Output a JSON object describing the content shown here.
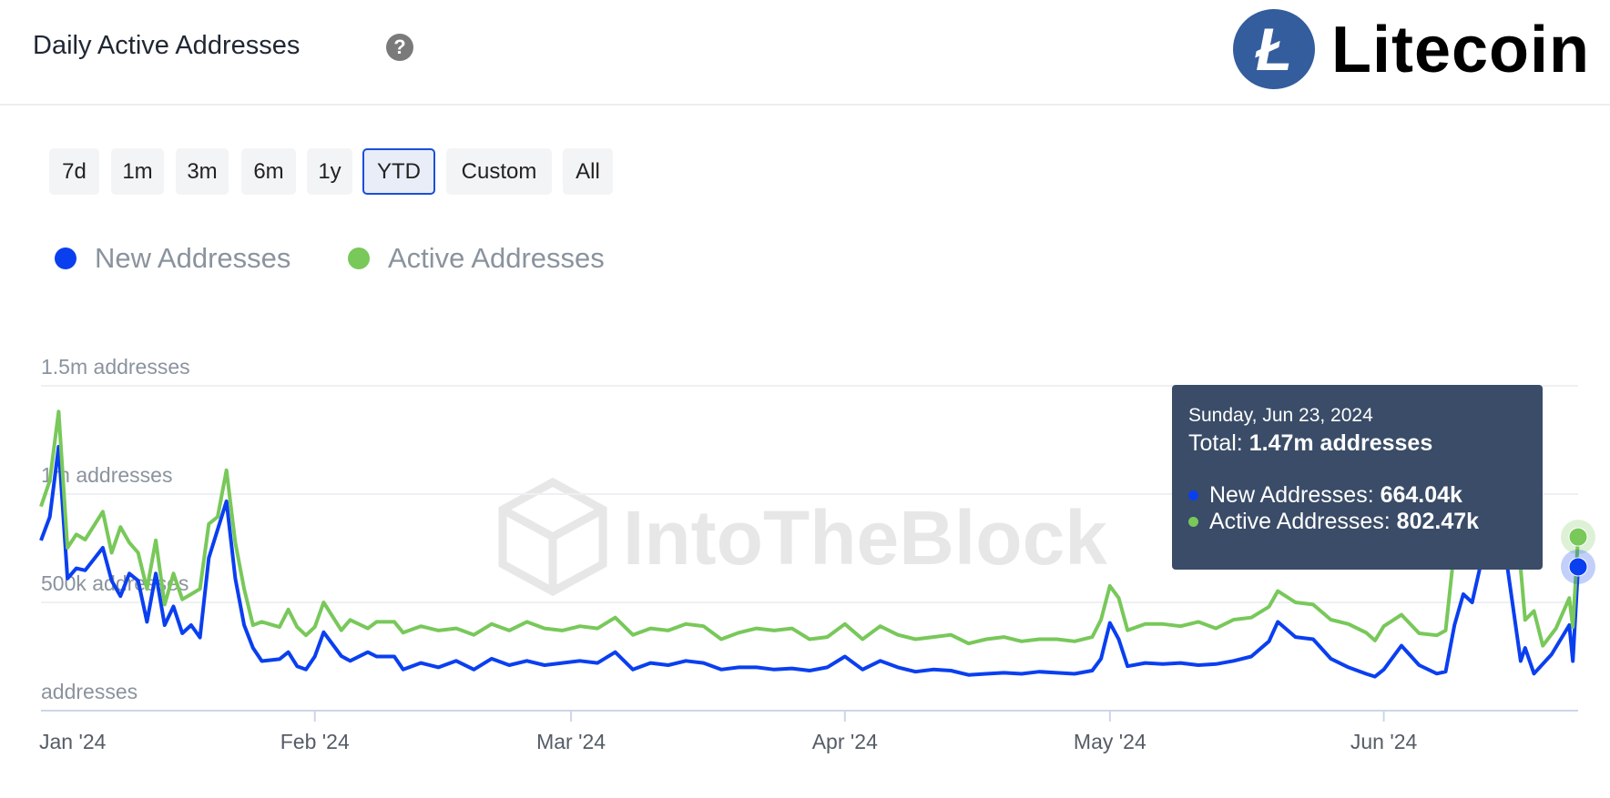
{
  "header": {
    "title": "Daily Active Addresses",
    "help_icon": "?",
    "brand": "Litecoin",
    "brand_logo_letter": "Ł"
  },
  "ranges": [
    {
      "label": "7d"
    },
    {
      "label": "1m"
    },
    {
      "label": "3m"
    },
    {
      "label": "6m"
    },
    {
      "label": "1y"
    },
    {
      "label": "YTD",
      "active": true
    },
    {
      "label": "Custom"
    },
    {
      "label": "All"
    }
  ],
  "legend": [
    {
      "label": "New Addresses",
      "color": "#0a3ff0"
    },
    {
      "label": "Active Addresses",
      "color": "#78c85a"
    }
  ],
  "watermark": "IntoTheBlock",
  "tooltip": {
    "date": "Sunday, Jun 23, 2024",
    "total_label": "Total:",
    "total_value": "1.47m addresses",
    "rows": [
      {
        "label": "New Addresses:",
        "value": "664.04k",
        "color": "#0a3ff0"
      },
      {
        "label": "Active Addresses:",
        "value": "802.47k",
        "color": "#78c85a"
      }
    ]
  },
  "chart_data": {
    "type": "line",
    "title": "Daily Active Addresses",
    "x_unit": "days since Jan 1 2024",
    "xlim": [
      0,
      174
    ],
    "ylim": [
      0,
      1500
    ],
    "y_unit": "thousands of addresses",
    "yticks": [
      {
        "value": 0,
        "label": "addresses"
      },
      {
        "value": 500,
        "label": "500k addresses"
      },
      {
        "value": 1000,
        "label": "1m addresses"
      },
      {
        "value": 1500,
        "label": "1.5m addresses"
      }
    ],
    "xticks": [
      {
        "value": 0,
        "label": "Jan '24"
      },
      {
        "value": 31,
        "label": "Feb '24"
      },
      {
        "value": 60,
        "label": "Mar '24"
      },
      {
        "value": 91,
        "label": "Apr '24"
      },
      {
        "value": 121,
        "label": "May '24"
      },
      {
        "value": 152,
        "label": "Jun '24"
      }
    ],
    "grid": true,
    "legend_position": "top-left",
    "series": [
      {
        "name": "Active Addresses",
        "color": "#78c85a",
        "points": [
          [
            0,
            943
          ],
          [
            1,
            1062
          ],
          [
            2,
            1381
          ],
          [
            3,
            752
          ],
          [
            4,
            814
          ],
          [
            5,
            790
          ],
          [
            7,
            919
          ],
          [
            8,
            729
          ],
          [
            9,
            848
          ],
          [
            10,
            776
          ],
          [
            11,
            729
          ],
          [
            12,
            562
          ],
          [
            13,
            786
          ],
          [
            14,
            490
          ],
          [
            15,
            633
          ],
          [
            16,
            514
          ],
          [
            17,
            538
          ],
          [
            18,
            562
          ],
          [
            19,
            862
          ],
          [
            20,
            895
          ],
          [
            21,
            1110
          ],
          [
            22,
            776
          ],
          [
            23,
            562
          ],
          [
            24,
            395
          ],
          [
            25,
            410
          ],
          [
            27,
            386
          ],
          [
            28,
            467
          ],
          [
            29,
            386
          ],
          [
            30,
            348
          ],
          [
            31,
            386
          ],
          [
            32,
            500
          ],
          [
            34,
            371
          ],
          [
            35,
            419
          ],
          [
            37,
            380
          ],
          [
            38,
            410
          ],
          [
            40,
            410
          ],
          [
            41,
            360
          ],
          [
            43,
            390
          ],
          [
            45,
            370
          ],
          [
            47,
            380
          ],
          [
            49,
            350
          ],
          [
            51,
            400
          ],
          [
            53,
            370
          ],
          [
            55,
            410
          ],
          [
            57,
            380
          ],
          [
            59,
            370
          ],
          [
            61,
            390
          ],
          [
            63,
            380
          ],
          [
            65,
            430
          ],
          [
            67,
            350
          ],
          [
            69,
            380
          ],
          [
            71,
            370
          ],
          [
            73,
            400
          ],
          [
            75,
            390
          ],
          [
            77,
            330
          ],
          [
            79,
            360
          ],
          [
            81,
            380
          ],
          [
            83,
            370
          ],
          [
            85,
            380
          ],
          [
            87,
            330
          ],
          [
            89,
            340
          ],
          [
            91,
            400
          ],
          [
            93,
            330
          ],
          [
            95,
            390
          ],
          [
            97,
            350
          ],
          [
            99,
            330
          ],
          [
            101,
            340
          ],
          [
            103,
            350
          ],
          [
            105,
            310
          ],
          [
            107,
            330
          ],
          [
            109,
            340
          ],
          [
            111,
            320
          ],
          [
            113,
            330
          ],
          [
            115,
            330
          ],
          [
            117,
            320
          ],
          [
            119,
            340
          ],
          [
            120,
            420
          ],
          [
            121,
            576
          ],
          [
            122,
            520
          ],
          [
            123,
            371
          ],
          [
            125,
            400
          ],
          [
            127,
            400
          ],
          [
            129,
            390
          ],
          [
            131,
            410
          ],
          [
            133,
            380
          ],
          [
            135,
            420
          ],
          [
            137,
            430
          ],
          [
            139,
            480
          ],
          [
            140,
            552
          ],
          [
            142,
            500
          ],
          [
            144,
            490
          ],
          [
            146,
            420
          ],
          [
            148,
            400
          ],
          [
            150,
            360
          ],
          [
            151,
            324
          ],
          [
            152,
            390
          ],
          [
            154,
            443
          ],
          [
            156,
            357
          ],
          [
            158,
            348
          ],
          [
            159,
            370
          ],
          [
            160,
            750
          ],
          [
            162,
            900
          ],
          [
            164,
            920
          ],
          [
            166,
            900
          ],
          [
            167.5,
            657
          ],
          [
            168,
            419
          ],
          [
            169,
            460
          ],
          [
            170,
            300
          ],
          [
            171.5,
            380
          ],
          [
            173,
            520
          ],
          [
            173.4,
            386
          ],
          [
            174,
            802
          ]
        ]
      },
      {
        "name": "New Addresses",
        "color": "#0a3ff0",
        "points": [
          [
            0,
            786
          ],
          [
            1,
            895
          ],
          [
            2,
            1219
          ],
          [
            3,
            610
          ],
          [
            4,
            657
          ],
          [
            5,
            648
          ],
          [
            7,
            752
          ],
          [
            8,
            600
          ],
          [
            9,
            529
          ],
          [
            10,
            633
          ],
          [
            11,
            600
          ],
          [
            12,
            410
          ],
          [
            13,
            633
          ],
          [
            14,
            395
          ],
          [
            15,
            481
          ],
          [
            16,
            357
          ],
          [
            17,
            395
          ],
          [
            18,
            338
          ],
          [
            19,
            705
          ],
          [
            21,
            967
          ],
          [
            22,
            610
          ],
          [
            23,
            395
          ],
          [
            24,
            290
          ],
          [
            25,
            229
          ],
          [
            27,
            238
          ],
          [
            28,
            270
          ],
          [
            29,
            205
          ],
          [
            30,
            190
          ],
          [
            31,
            250
          ],
          [
            32,
            362
          ],
          [
            34,
            252
          ],
          [
            35,
            230
          ],
          [
            37,
            270
          ],
          [
            38,
            250
          ],
          [
            40,
            250
          ],
          [
            41,
            190
          ],
          [
            43,
            220
          ],
          [
            45,
            200
          ],
          [
            47,
            230
          ],
          [
            49,
            190
          ],
          [
            51,
            240
          ],
          [
            53,
            210
          ],
          [
            55,
            230
          ],
          [
            57,
            210
          ],
          [
            59,
            220
          ],
          [
            61,
            230
          ],
          [
            63,
            220
          ],
          [
            65,
            270
          ],
          [
            67,
            190
          ],
          [
            69,
            220
          ],
          [
            71,
            210
          ],
          [
            73,
            230
          ],
          [
            75,
            220
          ],
          [
            77,
            190
          ],
          [
            79,
            200
          ],
          [
            81,
            200
          ],
          [
            83,
            190
          ],
          [
            85,
            195
          ],
          [
            87,
            185
          ],
          [
            89,
            200
          ],
          [
            91,
            250
          ],
          [
            93,
            190
          ],
          [
            95,
            230
          ],
          [
            97,
            200
          ],
          [
            99,
            180
          ],
          [
            101,
            190
          ],
          [
            103,
            185
          ],
          [
            105,
            165
          ],
          [
            107,
            170
          ],
          [
            109,
            175
          ],
          [
            111,
            170
          ],
          [
            113,
            180
          ],
          [
            115,
            175
          ],
          [
            117,
            170
          ],
          [
            119,
            185
          ],
          [
            120,
            240
          ],
          [
            121,
            405
          ],
          [
            122,
            330
          ],
          [
            123,
            205
          ],
          [
            125,
            220
          ],
          [
            127,
            215
          ],
          [
            129,
            220
          ],
          [
            131,
            210
          ],
          [
            133,
            215
          ],
          [
            135,
            230
          ],
          [
            137,
            250
          ],
          [
            139,
            320
          ],
          [
            140,
            410
          ],
          [
            142,
            340
          ],
          [
            144,
            330
          ],
          [
            146,
            240
          ],
          [
            148,
            200
          ],
          [
            150,
            170
          ],
          [
            151,
            157
          ],
          [
            152,
            190
          ],
          [
            154,
            300
          ],
          [
            156,
            210
          ],
          [
            158,
            171
          ],
          [
            159,
            180
          ],
          [
            160,
            395
          ],
          [
            161,
            538
          ],
          [
            162,
            500
          ],
          [
            163,
            681
          ],
          [
            165,
            681
          ],
          [
            166,
            660
          ],
          [
            167.5,
            229
          ],
          [
            168,
            290
          ],
          [
            169,
            171
          ],
          [
            171,
            260
          ],
          [
            173,
            395
          ],
          [
            173.4,
            229
          ],
          [
            174,
            664
          ]
        ]
      }
    ]
  }
}
